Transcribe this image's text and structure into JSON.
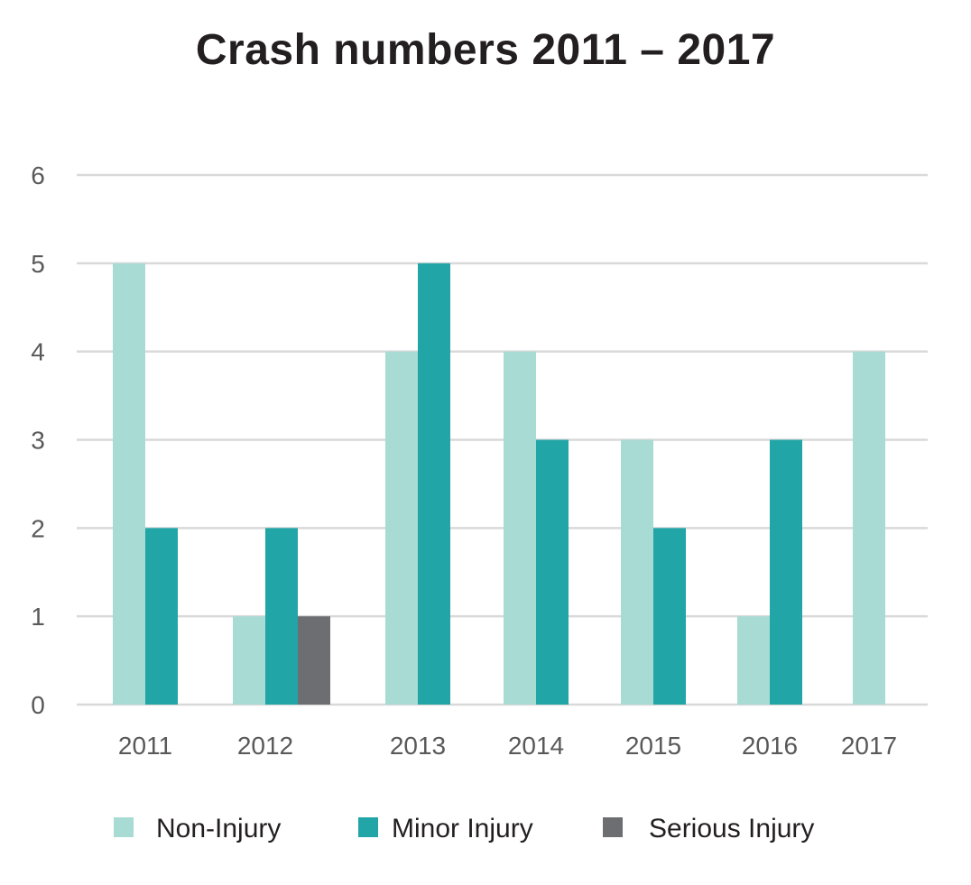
{
  "chart_data": {
    "type": "bar",
    "title": "Crash numbers 2011 – 2017",
    "xlabel": "",
    "ylabel": "",
    "categories": [
      "2011",
      "2012",
      "2013",
      "2014",
      "2015",
      "2016",
      "2017"
    ],
    "series": [
      {
        "name": "Non-Injury",
        "color": "#a8dbd4",
        "values": [
          5,
          1,
          4,
          4,
          3,
          1,
          4
        ]
      },
      {
        "name": "Minor Injury",
        "color": "#21a5a6",
        "values": [
          2,
          2,
          5,
          3,
          2,
          3,
          0
        ]
      },
      {
        "name": "Serious Injury",
        "color": "#6d6e71",
        "values": [
          0,
          1,
          0,
          0,
          0,
          0,
          0
        ]
      }
    ],
    "ylim": [
      0,
      6
    ],
    "yticks": [
      0,
      1,
      2,
      3,
      4,
      5,
      6
    ],
    "grid": true,
    "gridline_color": "#d9d9d9",
    "legend_position": "bottom"
  }
}
